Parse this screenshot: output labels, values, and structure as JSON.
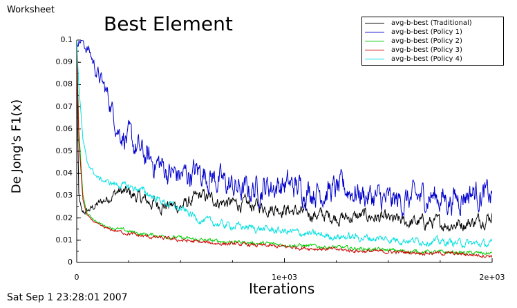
{
  "window": {
    "title": "Worksheet",
    "timestamp": "Sat Sep 1 23:28:01 2007"
  },
  "chart_data": {
    "type": "line",
    "title": "Best Element",
    "xlabel": "Iterations",
    "ylabel": "De Jong's F1(x)",
    "xlim": [
      0,
      2000
    ],
    "ylim": [
      0,
      0.1
    ],
    "yticks": [
      0.1,
      0.09,
      0.08,
      0.07,
      0.06,
      0.05,
      0.04,
      0.03,
      0.02,
      0.01,
      0
    ],
    "ytick_labels": [
      "0.1",
      "0.09",
      "0.08",
      "0.07",
      "0.06",
      "0.05",
      "0.04",
      "0.03",
      "0.02",
      "0.01",
      "0"
    ],
    "xticks": [
      0,
      1000,
      2000
    ],
    "xtick_labels": [
      "0",
      "1e+03",
      "2e+03"
    ],
    "legend_position": "top-right",
    "series": [
      {
        "name": "avg-b-best (Traditional)",
        "color": "#000000",
        "x": [
          0,
          10,
          25,
          50,
          100,
          150,
          200,
          250,
          300,
          350,
          400,
          500,
          600,
          700,
          800,
          900,
          1000,
          1100,
          1200,
          1300,
          1400,
          1500,
          1600,
          1700,
          1800,
          1900,
          2000
        ],
        "y": [
          0.085,
          0.03,
          0.022,
          0.023,
          0.026,
          0.029,
          0.032,
          0.031,
          0.029,
          0.027,
          0.026,
          0.025,
          0.03,
          0.027,
          0.026,
          0.025,
          0.024,
          0.022,
          0.021,
          0.02,
          0.021,
          0.019,
          0.018,
          0.018,
          0.017,
          0.018,
          0.021
        ]
      },
      {
        "name": "avg-b-best (Policy 1)",
        "color": "#0000cc",
        "x": [
          0,
          20,
          60,
          100,
          150,
          200,
          250,
          300,
          350,
          400,
          450,
          500,
          600,
          700,
          800,
          900,
          1000,
          1100,
          1200,
          1300,
          1400,
          1500,
          1600,
          1700,
          1800,
          1900,
          2000
        ],
        "y": [
          0.1,
          0.1,
          0.095,
          0.085,
          0.075,
          0.06,
          0.055,
          0.05,
          0.046,
          0.044,
          0.04,
          0.039,
          0.041,
          0.036,
          0.032,
          0.034,
          0.035,
          0.033,
          0.032,
          0.033,
          0.03,
          0.027,
          0.028,
          0.03,
          0.028,
          0.032,
          0.029
        ]
      },
      {
        "name": "avg-b-best (Policy 2)",
        "color": "#00cc00",
        "x": [
          0,
          10,
          30,
          50,
          100,
          150,
          200,
          300,
          400,
          500,
          600,
          800,
          1000,
          1200,
          1400,
          1600,
          1800,
          2000
        ],
        "y": [
          0.1,
          0.06,
          0.03,
          0.022,
          0.018,
          0.016,
          0.015,
          0.013,
          0.012,
          0.011,
          0.01,
          0.009,
          0.008,
          0.007,
          0.006,
          0.005,
          0.0045,
          0.004
        ]
      },
      {
        "name": "avg-b-best (Policy 3)",
        "color": "#cc0000",
        "x": [
          0,
          10,
          30,
          50,
          100,
          150,
          200,
          300,
          400,
          500,
          600,
          800,
          1000,
          1200,
          1400,
          1600,
          1800,
          2000
        ],
        "y": [
          0.1,
          0.055,
          0.028,
          0.021,
          0.017,
          0.015,
          0.014,
          0.012,
          0.011,
          0.01,
          0.009,
          0.008,
          0.007,
          0.006,
          0.005,
          0.0045,
          0.004,
          0.003
        ]
      },
      {
        "name": "avg-b-best (Policy 4)",
        "color": "#00e0e0",
        "x": [
          0,
          10,
          30,
          50,
          100,
          150,
          200,
          300,
          400,
          500,
          600,
          700,
          800,
          900,
          1000,
          1200,
          1400,
          1600,
          1800,
          2000
        ],
        "y": [
          0.1,
          0.08,
          0.055,
          0.045,
          0.038,
          0.036,
          0.035,
          0.033,
          0.028,
          0.024,
          0.019,
          0.017,
          0.016,
          0.015,
          0.014,
          0.012,
          0.011,
          0.01,
          0.009,
          0.008
        ]
      }
    ]
  }
}
